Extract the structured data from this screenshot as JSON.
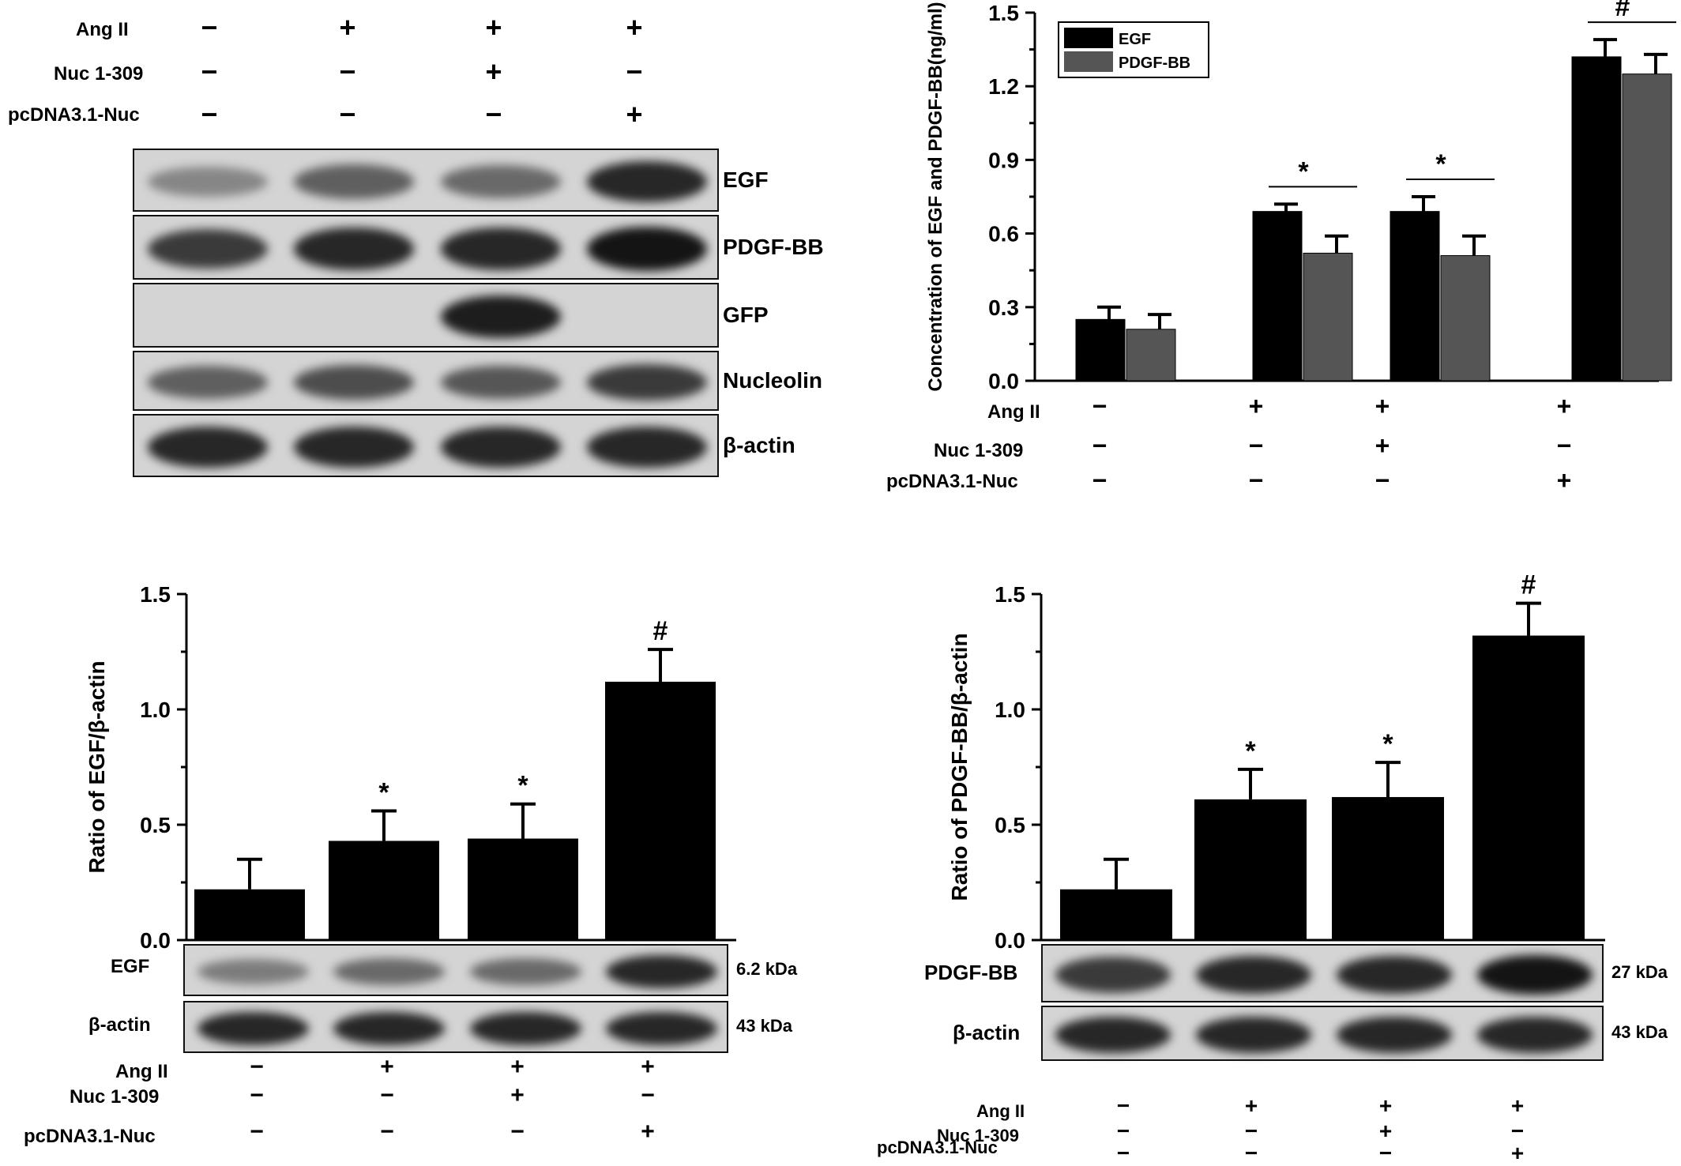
{
  "conditions": {
    "labels": [
      "Ang II",
      "Nuc 1-309",
      "pcDNA3.1-Nuc"
    ],
    "rows": [
      [
        "−",
        "+",
        "+",
        "+"
      ],
      [
        "−",
        "−",
        "+",
        "−"
      ],
      [
        "−",
        "−",
        "−",
        "+"
      ]
    ]
  },
  "western_top": {
    "bands": [
      {
        "label": "EGF",
        "intensity": [
          0.35,
          0.55,
          0.5,
          0.85
        ]
      },
      {
        "label": "PDGF-BB",
        "intensity": [
          0.75,
          0.85,
          0.85,
          0.95
        ]
      },
      {
        "label": "GFP",
        "intensity": [
          0,
          0,
          0.9,
          0
        ]
      },
      {
        "label": "Nucleolin",
        "intensity": [
          0.55,
          0.65,
          0.6,
          0.75
        ]
      },
      {
        "label": "β-actin",
        "intensity": [
          0.85,
          0.85,
          0.85,
          0.85
        ]
      }
    ]
  },
  "western_egf": {
    "bands": [
      {
        "label": "EGF",
        "kda": "6.2 kDa",
        "intensity": [
          0.4,
          0.5,
          0.5,
          0.85
        ]
      },
      {
        "label": "β-actin",
        "kda": "43 kDa",
        "intensity": [
          0.85,
          0.85,
          0.85,
          0.85
        ]
      }
    ]
  },
  "western_pdgf": {
    "bands": [
      {
        "label": "PDGF-BB",
        "kda": "27 kDa",
        "intensity": [
          0.75,
          0.85,
          0.85,
          0.95
        ]
      },
      {
        "label": "β-actin",
        "kda": "43 kDa",
        "intensity": [
          0.85,
          0.85,
          0.85,
          0.85
        ]
      }
    ]
  },
  "chart_data": [
    {
      "type": "bar",
      "title": "",
      "ylabel": "Concentration of EGF and PDGF-BB(ng/ml)",
      "ylim": [
        0,
        1.5
      ],
      "yticks": [
        "0.0",
        "0.3",
        "0.6",
        "0.9",
        "1.2",
        "1.5"
      ],
      "legend": "top-left",
      "series": [
        {
          "name": "EGF",
          "color": "#000000",
          "values": [
            0.25,
            0.69,
            0.69,
            1.32
          ],
          "errors": [
            0.05,
            0.03,
            0.06,
            0.07
          ]
        },
        {
          "name": "PDGF-BB",
          "color": "#555555",
          "values": [
            0.21,
            0.52,
            0.51,
            1.25
          ],
          "errors": [
            0.06,
            0.07,
            0.08,
            0.08
          ]
        }
      ],
      "significance": [
        "",
        "*",
        "*",
        "#"
      ]
    },
    {
      "type": "bar",
      "ylabel": "Ratio of  EGF/β-actin",
      "ylim": [
        0,
        1.5
      ],
      "yticks": [
        "0.0",
        "0.5",
        "1.0",
        "1.5"
      ],
      "values": [
        0.22,
        0.43,
        0.44,
        1.12
      ],
      "errors": [
        0.13,
        0.13,
        0.15,
        0.14
      ],
      "significance": [
        "",
        "*",
        "*",
        "#"
      ]
    },
    {
      "type": "bar",
      "ylabel": "Ratio of  PDGF-BB/β-actin",
      "ylim": [
        0,
        1.5
      ],
      "yticks": [
        "0.0",
        "0.5",
        "1.0",
        "1.5"
      ],
      "values": [
        0.22,
        0.61,
        0.62,
        1.32
      ],
      "errors": [
        0.13,
        0.13,
        0.15,
        0.14
      ],
      "significance": [
        "",
        "*",
        "*",
        "#"
      ]
    }
  ]
}
